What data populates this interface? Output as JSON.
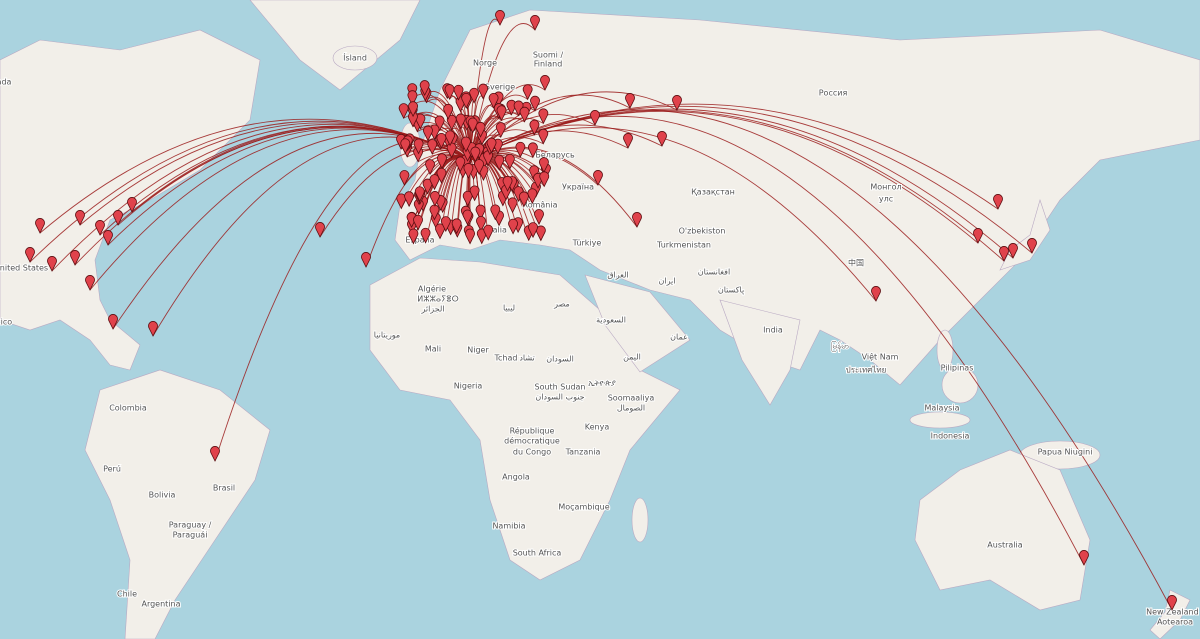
{
  "labels": [
    "Ísland",
    "Norge",
    "Sverige",
    "Suomi /",
    "Finland",
    "Россия",
    "Беларусь",
    "Україна",
    "Қазақстан",
    "Монгол",
    "улс",
    "O'zbekiston",
    "Turkmenistan",
    "Türkiye",
    "العراق",
    "ایران",
    "افغانستان",
    "پاکستان",
    "中国",
    "India",
    "Việt Nam",
    "ประเทศไทย",
    "မြန်မာ",
    "Pilipinas",
    "Malaysia",
    "Indonesia",
    "Papua Niugini",
    "Australia",
    "New Zealand /",
    "Aotearoa",
    "Algérie",
    "ⵍⵣⵣⴰⵢⴻⵔ",
    "الجزائر",
    "ليبيا",
    "مصر",
    "السعودية",
    "اليمن",
    "عمان",
    "موريتانيا",
    "Mali",
    "Niger",
    "Tchad",
    "تشاد",
    "السودان",
    "Nigeria",
    "South Sudan",
    "جنوب السودان",
    "ኢትዮጵያ",
    "Soomaaliya",
    "الصومال",
    "République",
    "démocratique",
    "du Congo",
    "Kenya",
    "Tanzania",
    "Angola",
    "Namibia",
    "Moçambique",
    "South Africa",
    "Colombia",
    "Perú",
    "Bolivia",
    "Brasil",
    "Paraguay /",
    "Paraguái",
    "Chile",
    "Argentina",
    "United States",
    "ada",
    "xico",
    "España",
    "Italia",
    "România"
  ]
}
